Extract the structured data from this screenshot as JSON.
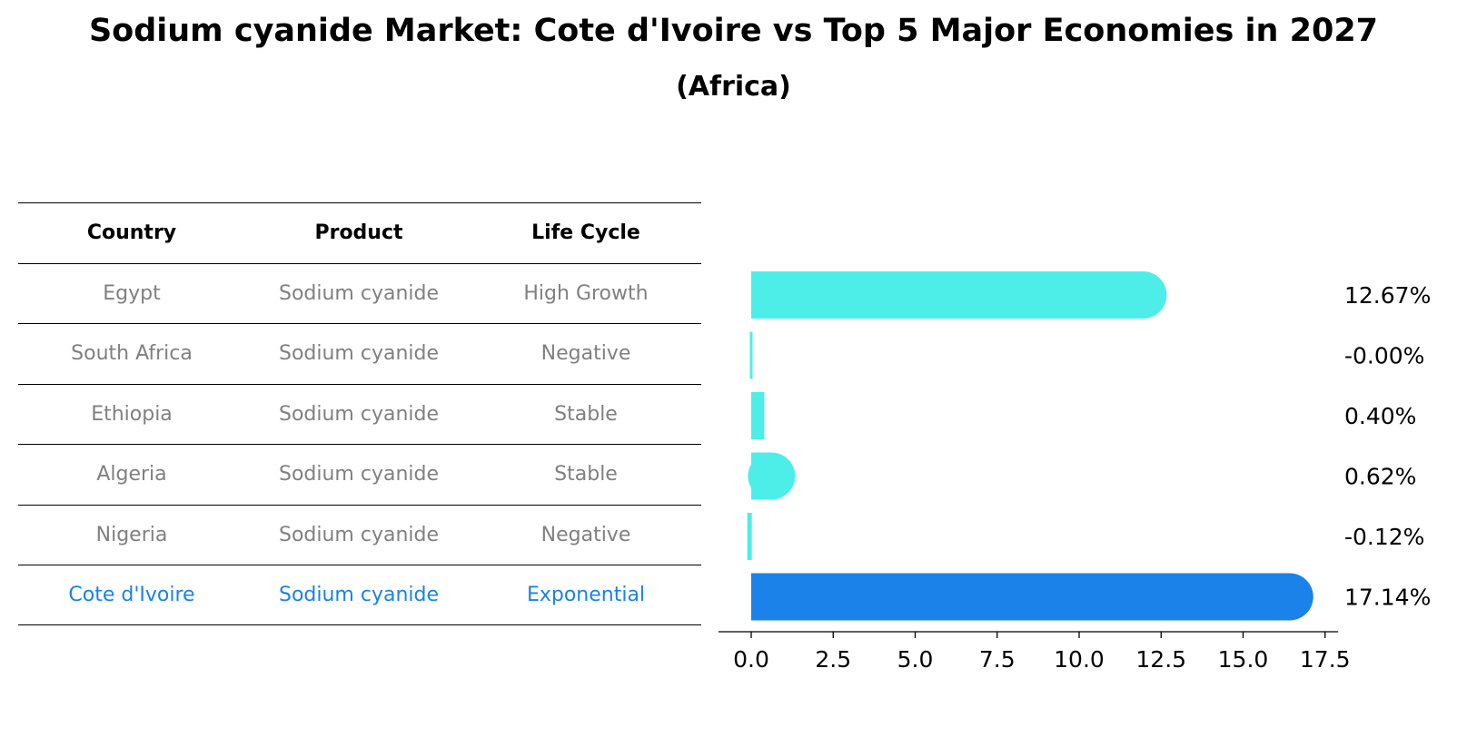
{
  "title": "Sodium cyanide Market: Cote d'Ivoire vs Top 5 Major Economies in 2027",
  "subtitle": "(Africa)",
  "table": {
    "headers": [
      "Country",
      "Product",
      "Life Cycle"
    ],
    "rows": [
      {
        "country": "Egypt",
        "product": "Sodium cyanide",
        "life_cycle": "High Growth"
      },
      {
        "country": "South Africa",
        "product": "Sodium cyanide",
        "life_cycle": "Negative"
      },
      {
        "country": "Ethiopia",
        "product": "Sodium cyanide",
        "life_cycle": "Stable"
      },
      {
        "country": "Algeria",
        "product": "Sodium cyanide",
        "life_cycle": "Stable"
      },
      {
        "country": "Nigeria",
        "product": "Sodium cyanide",
        "life_cycle": "Negative"
      },
      {
        "country": "Cote d'Ivoire",
        "product": "Sodium cyanide",
        "life_cycle": "Exponential"
      }
    ]
  },
  "colors": {
    "bar": "#4deee8",
    "highlight": "#1a82e8",
    "muted_text": "#808080"
  },
  "chart_data": {
    "type": "bar",
    "orientation": "horizontal",
    "categories": [
      "Egypt",
      "South Africa",
      "Ethiopia",
      "Algeria",
      "Nigeria",
      "Cote d'Ivoire"
    ],
    "values": [
      12.67,
      -0.001,
      0.4,
      0.62,
      -0.12,
      17.14
    ],
    "value_labels": [
      "12.67%",
      "-0.00%",
      "0.40%",
      "0.62%",
      "-0.12%",
      "17.14%"
    ],
    "highlight_category": "Cote d'Ivoire",
    "xlim": [
      -1.0,
      17.9
    ],
    "xticks": [
      0.0,
      2.5,
      5.0,
      7.5,
      10.0,
      12.5,
      15.0,
      17.5
    ],
    "xtick_labels": [
      "0.0",
      "2.5",
      "5.0",
      "7.5",
      "10.0",
      "12.5",
      "15.0",
      "17.5"
    ],
    "grid": false
  }
}
